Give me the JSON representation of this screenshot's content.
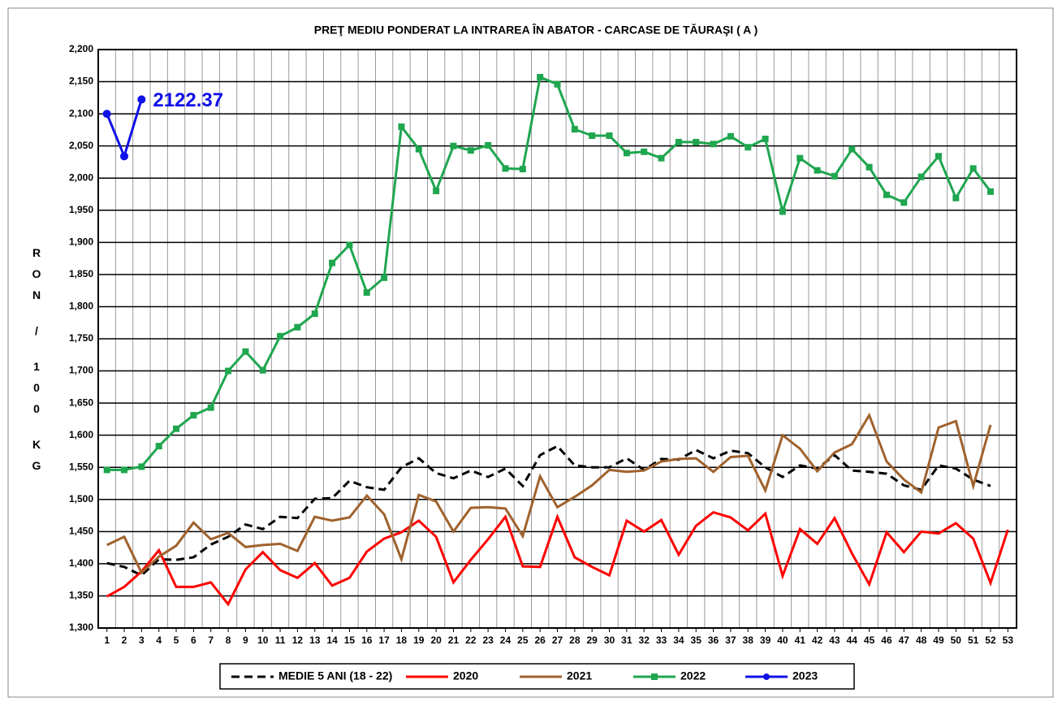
{
  "chart_data": {
    "type": "line",
    "title": "PREŢ MEDIU PONDERAT LA INTRAREA ÎN ABATOR  - CARCASE DE TĂURAŞI  ( A )",
    "y_label": "RON/100KG",
    "categories": [
      "1",
      "2",
      "3",
      "4",
      "5",
      "6",
      "7",
      "8",
      "9",
      "10",
      "11",
      "12",
      "13",
      "14",
      "15",
      "16",
      "17",
      "18",
      "19",
      "20",
      "21",
      "22",
      "23",
      "24",
      "25",
      "26",
      "27",
      "28",
      "29",
      "30",
      "31",
      "32",
      "33",
      "34",
      "35",
      "36",
      "37",
      "38",
      "39",
      "40",
      "41",
      "42",
      "43",
      "44",
      "45",
      "46",
      "47",
      "48",
      "49",
      "50",
      "51",
      "52",
      "53"
    ],
    "ylim": [
      1300,
      2200
    ],
    "yticks": [
      {
        "value": 1300,
        "label": "1,300"
      },
      {
        "value": 1350,
        "label": "1,350"
      },
      {
        "value": 1400,
        "label": "1,400"
      },
      {
        "value": 1450,
        "label": "1,450"
      },
      {
        "value": 1500,
        "label": "1,500"
      },
      {
        "value": 1550,
        "label": "1,550"
      },
      {
        "value": 1600,
        "label": "1,600"
      },
      {
        "value": 1650,
        "label": "1,650"
      },
      {
        "value": 1700,
        "label": "1,700"
      },
      {
        "value": 1750,
        "label": "1,750"
      },
      {
        "value": 1800,
        "label": "1,800"
      },
      {
        "value": 1850,
        "label": "1,850"
      },
      {
        "value": 1900,
        "label": "1,900"
      },
      {
        "value": 1950,
        "label": "1,950"
      },
      {
        "value": 2000,
        "label": "2,000"
      },
      {
        "value": 2050,
        "label": "2,050"
      },
      {
        "value": 2100,
        "label": "2,100"
      },
      {
        "value": 2150,
        "label": "2,150"
      },
      {
        "value": 2200,
        "label": "2,200"
      }
    ],
    "grid": true,
    "legend": "bottom",
    "series": [
      {
        "name": "MEDIE 5 ANI (18 - 22)",
        "color": "#000000",
        "dash": true,
        "marker": "none",
        "values": [
          1401,
          1395,
          1382,
          1407,
          1406,
          1410,
          1430,
          1442,
          1461,
          1454,
          1473,
          1471,
          1501,
          1502,
          1529,
          1519,
          1515,
          1550,
          1564,
          1541,
          1533,
          1545,
          1535,
          1548,
          1521,
          1569,
          1583,
          1553,
          1550,
          1550,
          1564,
          1546,
          1563,
          1562,
          1577,
          1564,
          1576,
          1572,
          1550,
          1535,
          1553,
          1548,
          1569,
          1545,
          1543,
          1540,
          1522,
          1515,
          1553,
          1548,
          1531,
          1521,
          null
        ]
      },
      {
        "name": "2020",
        "color": "#ff0000",
        "marker": "none",
        "values": [
          1349,
          1364,
          1388,
          1421,
          1364,
          1364,
          1371,
          1337,
          1391,
          1418,
          1390,
          1378,
          1401,
          1366,
          1378,
          1419,
          1439,
          1449,
          1467,
          1442,
          1371,
          1406,
          1438,
          1473,
          1396,
          1395,
          1473,
          1410,
          1395,
          1382,
          1467,
          1450,
          1468,
          1414,
          1459,
          1480,
          1472,
          1452,
          1478,
          1381,
          1454,
          1431,
          1471,
          1416,
          1368,
          1449,
          1418,
          1450,
          1447,
          1463,
          1439,
          1370,
          1453
        ]
      },
      {
        "name": "2021",
        "color": "#a0622d",
        "marker": "none",
        "values": [
          1429,
          1442,
          1386,
          1411,
          1428,
          1464,
          1438,
          1448,
          1426,
          1429,
          1431,
          1420,
          1473,
          1467,
          1472,
          1506,
          1477,
          1407,
          1507,
          1497,
          1450,
          1487,
          1488,
          1486,
          1443,
          1536,
          1488,
          1504,
          1522,
          1546,
          1543,
          1545,
          1559,
          1563,
          1564,
          1543,
          1566,
          1568,
          1514,
          1600,
          1579,
          1544,
          1573,
          1586,
          1631,
          1559,
          1531,
          1511,
          1612,
          1622,
          1521,
          1616,
          null
        ]
      },
      {
        "name": "2022",
        "color": "#1fa64f",
        "marker": "square",
        "values": [
          1546,
          1546,
          1551,
          1583,
          1610,
          1631,
          1643,
          1700,
          1730,
          1701,
          1754,
          1768,
          1789,
          1868,
          1896,
          1822,
          1845,
          2080,
          2045,
          1980,
          2050,
          2043,
          2051,
          2015,
          2014,
          2157,
          2146,
          2076,
          2066,
          2066,
          2039,
          2041,
          2031,
          2056,
          2056,
          2053,
          2065,
          2048,
          2061,
          1948,
          2031,
          2012,
          2003,
          2045,
          2017,
          1974,
          1962,
          2002,
          2034,
          1969,
          2015,
          1979,
          null
        ]
      },
      {
        "name": "2023",
        "color": "#1010e8",
        "marker": "circle",
        "values": [
          2100,
          2034,
          2122.37,
          null,
          null,
          null,
          null,
          null,
          null,
          null,
          null,
          null,
          null,
          null,
          null,
          null,
          null,
          null,
          null,
          null,
          null,
          null,
          null,
          null,
          null,
          null,
          null,
          null,
          null,
          null,
          null,
          null,
          null,
          null,
          null,
          null,
          null,
          null,
          null,
          null,
          null,
          null,
          null,
          null,
          null,
          null,
          null,
          null,
          null,
          null,
          null,
          null,
          null
        ]
      }
    ]
  }
}
